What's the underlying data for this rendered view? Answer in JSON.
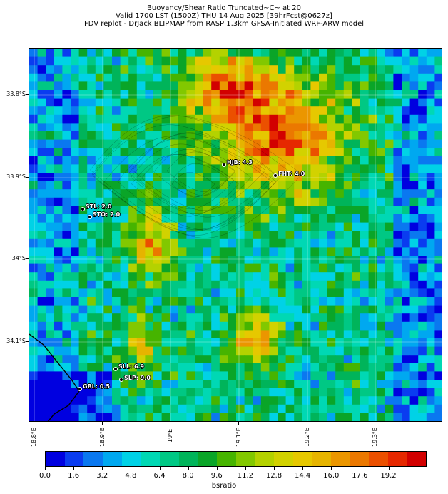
{
  "header": {
    "line1": "Buoyancy/Shear Ratio Truncated~C~    at 20",
    "line2": "Valid 1700 LST (1500Z) THU 14 Aug 2025 [39hrFcst@0627z]",
    "line3": "FDV replot - DrJack BLIPMAP from RASP 1.3km GFSA-Initiated WRF-ARW model"
  },
  "map": {
    "lat_labels": [
      "33.8°S",
      "33.9°S",
      "34°S",
      "34.1°S"
    ],
    "lon_labels": [
      "18.8°E",
      "18.9°E",
      "19°E",
      "19.1°E",
      "19.2°E",
      "19.3°E"
    ],
    "stations": [
      {
        "label": "HJB: 4.3"
      },
      {
        "label": "FHT: 4.0"
      },
      {
        "label": "STL: 2.0"
      },
      {
        "label": "STO: 2.0"
      },
      {
        "label": "SLL: 6.9"
      },
      {
        "label": "SLP: 9.0"
      },
      {
        "label": "GBL: 0.5"
      }
    ]
  },
  "colorbar": {
    "title": "bsratio",
    "ticks": [
      "0.0",
      "1.6",
      "3.2",
      "4.8",
      "6.4",
      "8.0",
      "9.6",
      "11.2",
      "12.8",
      "14.4",
      "16.0",
      "17.6",
      "19.2"
    ],
    "colors": [
      "#0000e0",
      "#0a3cf0",
      "#0a78f0",
      "#00a8f0",
      "#00d2e6",
      "#00d8b4",
      "#00c884",
      "#00b45a",
      "#0aa528",
      "#46b400",
      "#82c800",
      "#b4d200",
      "#d2d200",
      "#e6c800",
      "#e6b400",
      "#eb9600",
      "#eb7800",
      "#eb5000",
      "#e62800",
      "#d20000"
    ]
  }
}
